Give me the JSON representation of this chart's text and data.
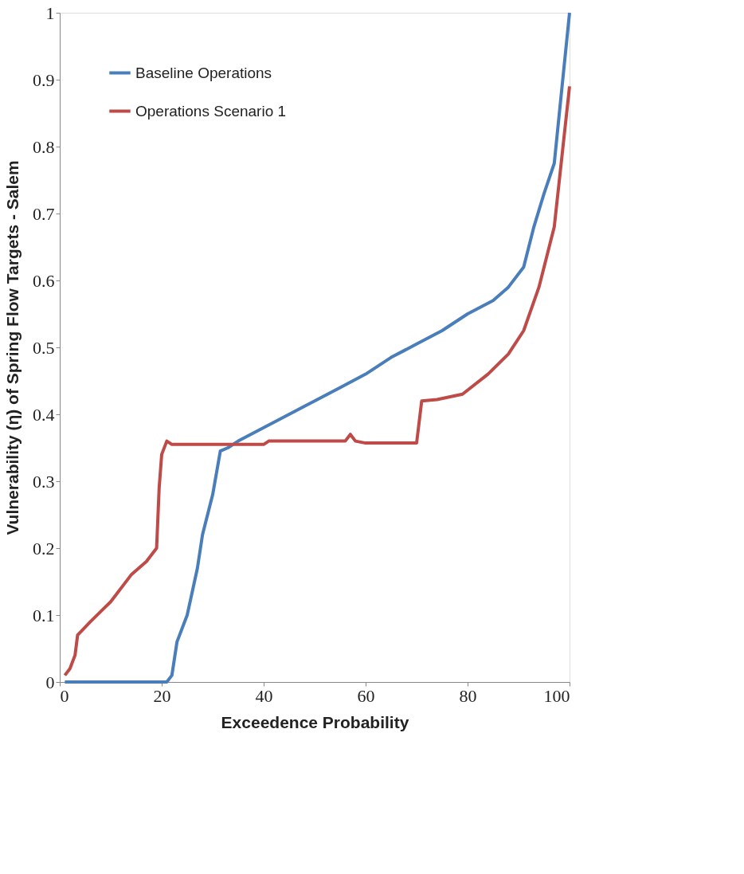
{
  "chart_data": {
    "type": "line",
    "xlabel": "Exceedence Probability",
    "ylabel": "Vulnerability (η) of Spring  Flow Targets - Salem",
    "xlim": [
      0,
      100
    ],
    "xticks": [
      0,
      20,
      40,
      60,
      80,
      100
    ],
    "ylim": [
      0,
      1
    ],
    "yticks": [
      0,
      0.1,
      0.2,
      0.3,
      0.4,
      0.5,
      0.6,
      0.7,
      0.8,
      0.9,
      1
    ],
    "grid": false,
    "legend": "top left",
    "marker": "none",
    "line_style": "solid",
    "series": [
      {
        "name": "Baseline Operations",
        "color": "#4a7ebb",
        "x": [
          1,
          21,
          22,
          23,
          25,
          27,
          28,
          30,
          31.5,
          33,
          35,
          40,
          45,
          50,
          55,
          60,
          65,
          70,
          75,
          80,
          85,
          88,
          91,
          93,
          95,
          97,
          100
        ],
        "values": [
          0,
          0,
          0.01,
          0.06,
          0.1,
          0.17,
          0.22,
          0.28,
          0.345,
          0.35,
          0.36,
          0.38,
          0.4,
          0.42,
          0.44,
          0.46,
          0.485,
          0.505,
          0.525,
          0.55,
          0.57,
          0.59,
          0.62,
          0.68,
          0.73,
          0.775,
          1.0
        ]
      },
      {
        "name": "Operations Scenario 1",
        "color": "#be4b48",
        "x": [
          1,
          2,
          3,
          3.5,
          6,
          10,
          14,
          17,
          19,
          19.5,
          20,
          21,
          22,
          40,
          41,
          56,
          57,
          58,
          60,
          70,
          71,
          74,
          79,
          84,
          88,
          91,
          94,
          96,
          97,
          100
        ],
        "values": [
          0.01,
          0.02,
          0.04,
          0.07,
          0.09,
          0.12,
          0.16,
          0.18,
          0.2,
          0.29,
          0.34,
          0.36,
          0.355,
          0.355,
          0.36,
          0.36,
          0.37,
          0.36,
          0.357,
          0.357,
          0.42,
          0.422,
          0.43,
          0.46,
          0.49,
          0.525,
          0.59,
          0.65,
          0.68,
          0.89
        ]
      }
    ]
  }
}
